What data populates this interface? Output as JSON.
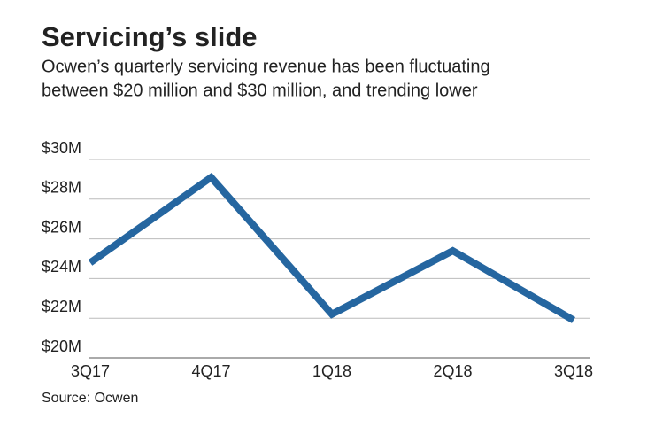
{
  "chart_data": {
    "type": "line",
    "title": "Servicing’s slide",
    "subtitle": [
      "Ocwen’s quarterly servicing revenue has been fluctuating",
      "between $20 million and $30 million, and trending lower"
    ],
    "source": "Source: Ocwen",
    "categories": [
      "3Q17",
      "4Q17",
      "1Q18",
      "2Q18",
      "3Q18"
    ],
    "series": [
      {
        "name": "Servicing revenue",
        "color": "#2566a0",
        "values": [
          24.8,
          29.1,
          22.2,
          25.4,
          21.9
        ]
      }
    ],
    "ylim": [
      20,
      30
    ],
    "yticks": [
      {
        "value": 20,
        "label": "$20M"
      },
      {
        "value": 22,
        "label": "$22M"
      },
      {
        "value": 24,
        "label": "$24M"
      },
      {
        "value": 26,
        "label": "$26M"
      },
      {
        "value": 28,
        "label": "$28M"
      },
      {
        "value": 30,
        "label": "$30M"
      }
    ],
    "grid": true
  }
}
